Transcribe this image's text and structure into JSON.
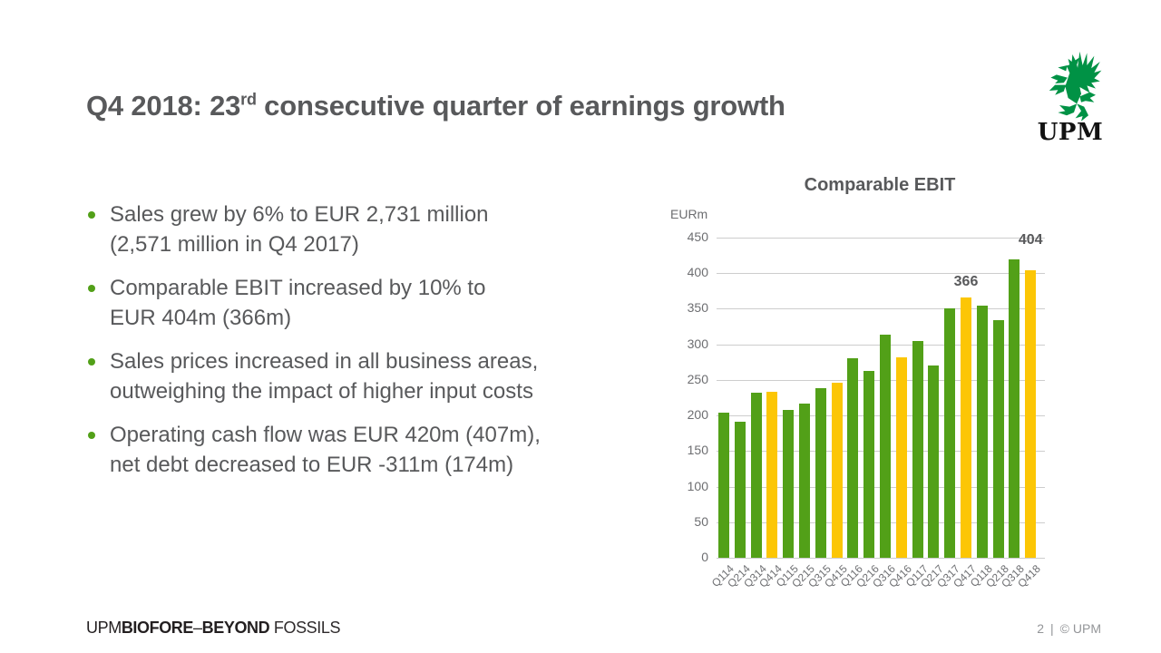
{
  "slide": {
    "title": {
      "prefix": "Q4 2018: 23",
      "superscript": "rd",
      "suffix": " consecutive quarter of earnings growth"
    },
    "bullets": [
      {
        "line1": "Sales grew by 6% to EUR 2,731 million",
        "line2": "(2,571 million in Q4 2017)"
      },
      {
        "line1": "Comparable EBIT increased by 10% to",
        "line2": "EUR 404m (366m)"
      },
      {
        "line1": "Sales prices increased in all business areas,",
        "line2": "outweighing the impact of higher input costs"
      },
      {
        "line1": "Operating cash flow was EUR 420m (407m),",
        "line2": "net debt decreased to EUR -311m (174m)"
      }
    ]
  },
  "logo": {
    "text": "UPM",
    "griffin_icon": "griffin-icon",
    "green": "#009245"
  },
  "chart_data": {
    "type": "bar",
    "title": "Comparable EBIT",
    "ylabel": "EURm",
    "xlabel": "",
    "categories": [
      "Q114",
      "Q214",
      "Q314",
      "Q414",
      "Q115",
      "Q215",
      "Q315",
      "Q415",
      "Q116",
      "Q216",
      "Q316",
      "Q416",
      "Q117",
      "Q217",
      "Q317",
      "Q417",
      "Q118",
      "Q218",
      "Q318",
      "Q418"
    ],
    "values": [
      204,
      191,
      232,
      233,
      208,
      217,
      238,
      246,
      280,
      263,
      314,
      282,
      305,
      270,
      351,
      366,
      355,
      334,
      420,
      404
    ],
    "ylim": [
      0,
      450
    ],
    "ytick_interval": 50,
    "grid": true,
    "legend": "none",
    "colors": {
      "default_bar": "#52a018",
      "q4_bar": "#fcc605",
      "axis_text": "#6d6e71",
      "gridline": "#cdcdcd",
      "label_text": "#58595b"
    },
    "data_labels": [
      {
        "category": "Q417",
        "text": "366",
        "offset": 8
      },
      {
        "category": "Q418",
        "text": "404",
        "offset": 24
      }
    ]
  },
  "footer": {
    "brand": {
      "upm": "UPM",
      "biofore": "BIOFORE",
      "dash": "–",
      "beyond": "BEYOND",
      "fossils": " FOSSILS"
    },
    "page_number": "2",
    "separator": "|",
    "copyright": "© UPM"
  },
  "theme": {
    "bullet_dot": "#52a018",
    "text_gray": "#58595b",
    "background": "#ffffff"
  }
}
